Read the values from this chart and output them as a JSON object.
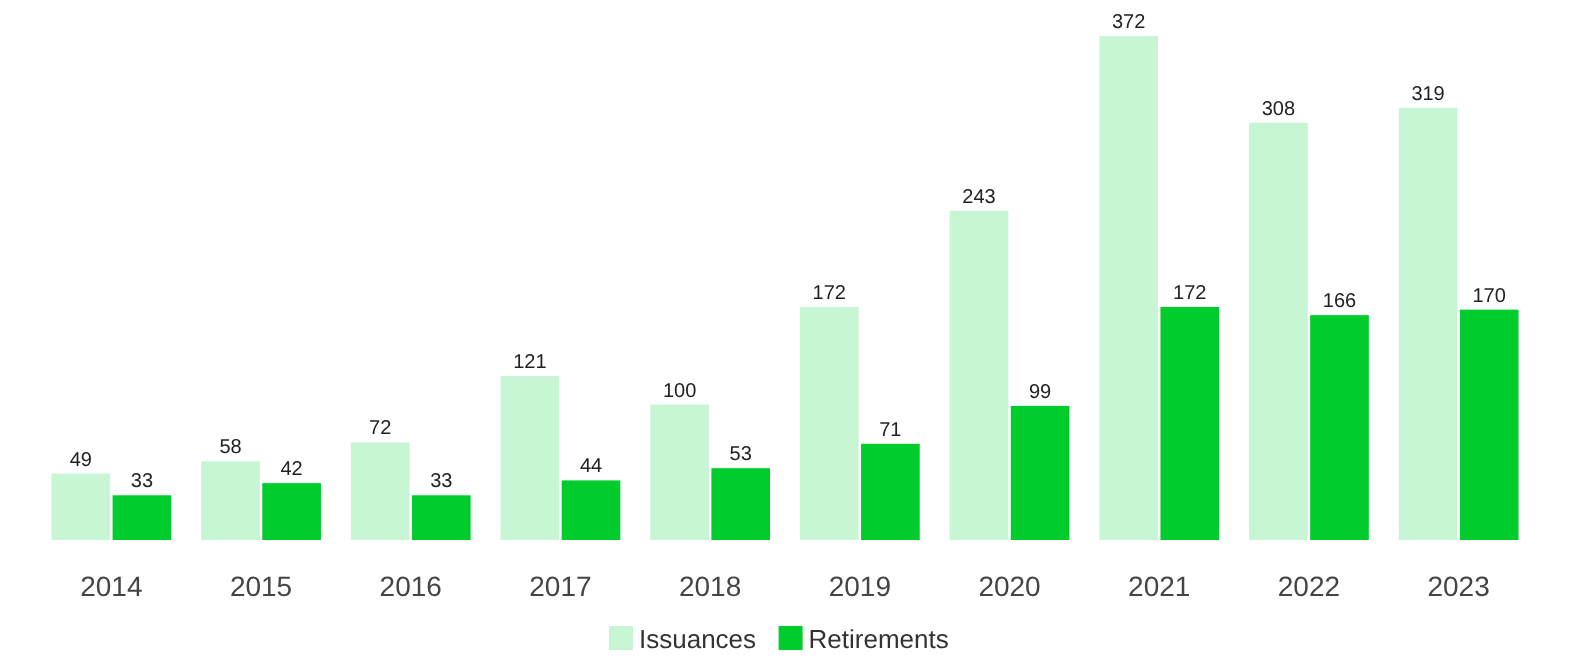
{
  "chart_data": {
    "type": "bar",
    "categories": [
      "2014",
      "2015",
      "2016",
      "2017",
      "2018",
      "2019",
      "2020",
      "2021",
      "2022",
      "2023"
    ],
    "series": [
      {
        "name": "Issuances",
        "color": "#c8f5d4",
        "values": [
          49,
          58,
          72,
          121,
          100,
          172,
          243,
          372,
          308,
          319
        ]
      },
      {
        "name": "Retirements",
        "color": "#00cc2e",
        "values": [
          33,
          42,
          33,
          44,
          53,
          71,
          99,
          172,
          166,
          170
        ]
      }
    ],
    "data_labels": true,
    "legend": "bottom"
  }
}
